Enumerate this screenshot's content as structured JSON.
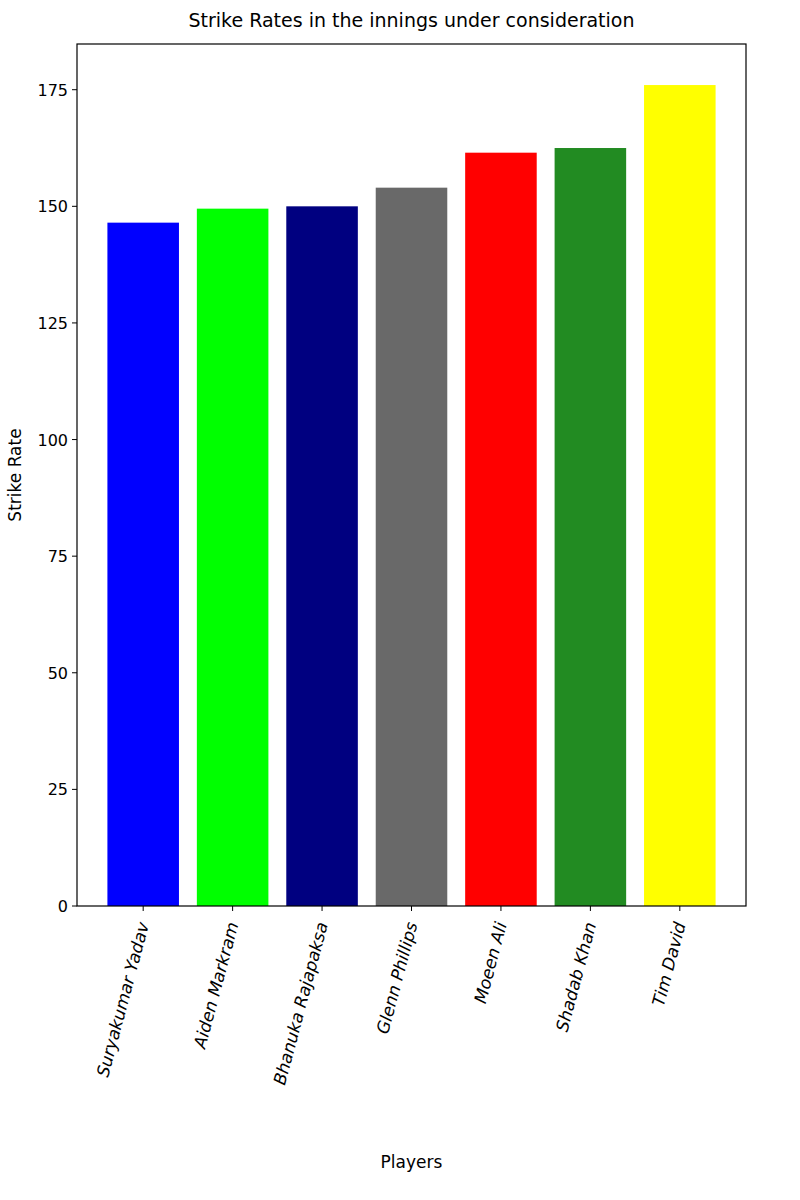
{
  "chart_data": {
    "type": "bar",
    "title": "Strike Rates in the innings under consideration",
    "x_label": "Players",
    "y_label": "Strike Rate",
    "categories": [
      "Suryakumar Yadav",
      "Aiden Markram",
      "Bhanuka Rajapaksa",
      "Glenn Phillips",
      "Moeen Ali",
      "Shadab Khan",
      "Tim David"
    ],
    "values": [
      146.5,
      149.5,
      150,
      154,
      161.5,
      162.5,
      176
    ],
    "colors": [
      "#0000ff",
      "#00ff00",
      "#000080",
      "#696969",
      "#ff0000",
      "#228b22",
      "#ffff00"
    ],
    "ylim": [
      0,
      184.8
    ],
    "yticks": [
      0,
      25,
      50,
      75,
      100,
      125,
      150,
      175
    ],
    "grid": false
  }
}
